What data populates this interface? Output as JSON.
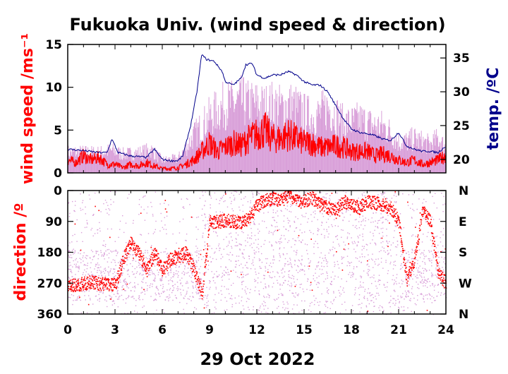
{
  "chart_data": [
    {
      "type": "line",
      "title": "Fukuoka Univ. (wind speed & direction)",
      "ylabel": "wind speed /ms⁻¹",
      "y2label": "temp. /ºC",
      "xlim": [
        0,
        24
      ],
      "ylim": [
        0,
        15
      ],
      "y2lim": [
        18,
        37
      ],
      "x_ticks": [
        0,
        3,
        6,
        9,
        12,
        15,
        18,
        21,
        24
      ],
      "y_ticks": [
        0,
        5,
        10,
        15
      ],
      "y2_ticks": [
        20,
        25,
        30,
        35
      ],
      "colors": {
        "mean_speed": "#ff0000",
        "gust": "#d9a0d9",
        "temperature": "#00008b"
      },
      "series": [
        {
          "id": "gust",
          "x": [
            0,
            1,
            2,
            2.8,
            3.5,
            4.5,
            5.3,
            6,
            7,
            7.5,
            8,
            8.5,
            9,
            9.5,
            10,
            10.5,
            11,
            11.5,
            12,
            12.5,
            13,
            13.5,
            14,
            14.5,
            15,
            15.5,
            16,
            16.5,
            17,
            17.5,
            18,
            18.5,
            19,
            19.5,
            20,
            20.5,
            21,
            21.5,
            22,
            22.5,
            23,
            23.5,
            24
          ],
          "values": [
            3.3,
            3.3,
            3.2,
            3.6,
            3.0,
            3.2,
            3.7,
            2.0,
            2.3,
            4.0,
            6.0,
            7.5,
            9.0,
            10.0,
            11.0,
            11.0,
            11.5,
            11.0,
            11.0,
            10.5,
            11.0,
            10.5,
            11.0,
            10.5,
            9.5,
            9.0,
            9.5,
            10.5,
            9.5,
            8.0,
            8.0,
            8.5,
            8.0,
            7.5,
            7.5,
            6.5,
            5.0,
            5.0,
            5.5,
            5.0,
            4.5,
            5.5,
            4.0
          ]
        },
        {
          "id": "mean_speed",
          "x": [
            0,
            0.5,
            1,
            1.5,
            2,
            2.5,
            3,
            3.5,
            4,
            4.5,
            5,
            5.5,
            6,
            6.5,
            7,
            7.5,
            8,
            8.5,
            9,
            9.5,
            10,
            10.5,
            11,
            11.5,
            12,
            12.5,
            13,
            13.5,
            14,
            14.5,
            15,
            15.5,
            16,
            16.5,
            17,
            17.5,
            18,
            18.5,
            19,
            19.5,
            20,
            20.5,
            21,
            21.5,
            22,
            22.5,
            23,
            23.5,
            24
          ],
          "values": [
            1.5,
            1.2,
            2.0,
            1.5,
            1.8,
            1.0,
            1.0,
            0.6,
            1.0,
            0.8,
            1.2,
            0.8,
            0.5,
            0.5,
            0.6,
            1.0,
            1.5,
            2.5,
            3.5,
            2.5,
            3.0,
            3.5,
            3.2,
            4.0,
            4.5,
            5.0,
            4.0,
            4.0,
            4.5,
            4.0,
            3.5,
            3.5,
            3.0,
            3.0,
            3.2,
            3.0,
            2.5,
            2.5,
            2.5,
            2.0,
            2.2,
            2.0,
            1.5,
            1.2,
            1.5,
            1.0,
            1.2,
            1.5,
            2.0
          ]
        },
        {
          "id": "temperature",
          "axis": "right",
          "x": [
            0,
            1,
            2,
            2.5,
            2.8,
            3.2,
            4,
            5,
            5.5,
            6,
            6.5,
            7,
            7.3,
            7.8,
            8.2,
            8.5,
            8.8,
            9.3,
            9.8,
            10,
            10.5,
            11,
            11.3,
            11.7,
            12,
            12.5,
            13,
            13.5,
            14,
            14.5,
            15,
            15.5,
            16,
            16.5,
            17,
            17.5,
            18,
            18.5,
            19,
            19.5,
            20,
            20.5,
            21,
            21.5,
            22,
            22.5,
            23,
            23.5,
            24
          ],
          "values": [
            21.5,
            21.3,
            21.0,
            21.0,
            23.0,
            21.0,
            20.5,
            20.3,
            21.5,
            20.0,
            19.8,
            19.8,
            20.5,
            25.0,
            30.0,
            35.5,
            34.8,
            34.5,
            33.0,
            31.5,
            31.0,
            32.0,
            34.0,
            34.2,
            32.5,
            32.0,
            32.5,
            32.5,
            33.0,
            32.5,
            31.5,
            31.0,
            31.0,
            30.0,
            28.0,
            26.0,
            24.5,
            24.0,
            23.8,
            23.5,
            23.0,
            22.8,
            24.0,
            22.0,
            21.5,
            21.2,
            21.2,
            21.0,
            22.0
          ]
        }
      ]
    },
    {
      "type": "scatter",
      "xlabel": "29 Oct 2022",
      "ylabel": "direction /º",
      "xlim": [
        0,
        24
      ],
      "ylim": [
        360,
        0
      ],
      "x_ticks": [
        0,
        3,
        6,
        9,
        12,
        15,
        18,
        21,
        24
      ],
      "x_tick_labels": [
        "0",
        "3",
        "6",
        "9",
        "12",
        "15",
        "18",
        "21",
        "24"
      ],
      "y_ticks": [
        0,
        90,
        180,
        270,
        360
      ],
      "y2_ticks": [
        0,
        90,
        180,
        270,
        360
      ],
      "y2_tick_labels": [
        "N",
        "E",
        "S",
        "W",
        "N"
      ],
      "colors": {
        "mean_direction": "#ff0000",
        "instant_direction": "#d9a0d9"
      },
      "series": [
        {
          "id": "mean_direction",
          "x": [
            0,
            0.5,
            1,
            1.5,
            2,
            2.5,
            3,
            3.5,
            4,
            4.5,
            5,
            5.5,
            6,
            6.5,
            7,
            7.5,
            8,
            8.5,
            9,
            9.5,
            10,
            10.5,
            11,
            11.5,
            12,
            12.5,
            13,
            13.5,
            14,
            14.5,
            15,
            15.5,
            16,
            16.5,
            17,
            17.5,
            18,
            18.5,
            19,
            19.5,
            20,
            20.5,
            21,
            21.5,
            22,
            22.5,
            23,
            23.5,
            24
          ],
          "values": [
            270,
            275,
            270,
            265,
            270,
            270,
            275,
            200,
            150,
            180,
            230,
            180,
            230,
            200,
            190,
            180,
            230,
            300,
            90,
            90,
            85,
            90,
            95,
            80,
            40,
            30,
            20,
            30,
            10,
            30,
            30,
            20,
            40,
            50,
            60,
            30,
            40,
            50,
            30,
            35,
            40,
            50,
            90,
            260,
            200,
            60,
            90,
            240,
            270
          ]
        }
      ]
    }
  ]
}
